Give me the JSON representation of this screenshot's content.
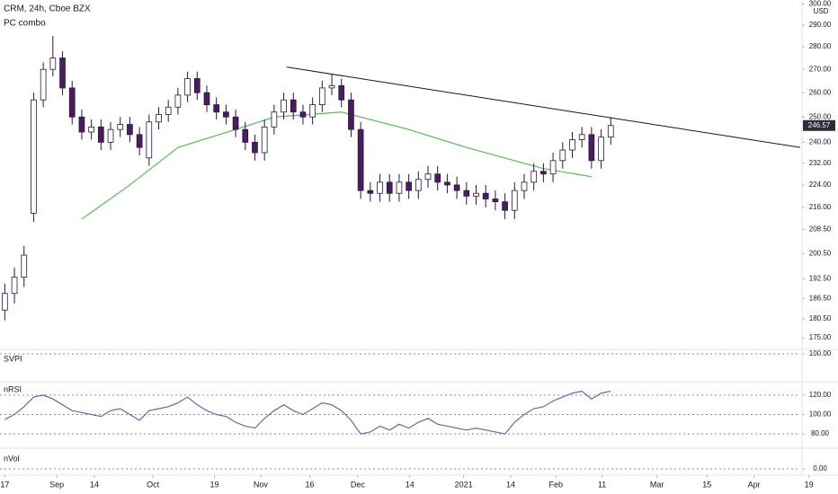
{
  "chart_data": [
    {
      "type": "candlestick",
      "title": "CRM, 24h, Cboe BZX",
      "subtitle": "PC combo",
      "y_unit": "USD",
      "log_scale": true,
      "up_color": "#ffffff",
      "down_color": "#4a1d5e",
      "edge_color": "#2a1540",
      "open": [
        183,
        188,
        193,
        214,
        257,
        270,
        275,
        262,
        250,
        244,
        246,
        240,
        245,
        247,
        243,
        234,
        248,
        251,
        254,
        259,
        266,
        260,
        255,
        252,
        250,
        245,
        240,
        236,
        246,
        252,
        257,
        252,
        250,
        255,
        262,
        263,
        257,
        245,
        222,
        221,
        225,
        221,
        225,
        222,
        226,
        228,
        225,
        224,
        222,
        220,
        221,
        219,
        218,
        215,
        222,
        225,
        229,
        228,
        233,
        237,
        241,
        243,
        233,
        242
      ],
      "high": [
        191,
        196,
        203,
        260,
        273,
        285,
        278,
        265,
        253,
        249,
        249,
        248,
        250,
        250,
        246,
        251,
        254,
        257,
        262,
        269,
        269,
        263,
        258,
        255,
        253,
        248,
        243,
        249,
        255,
        260,
        260,
        255,
        258,
        265,
        268,
        266,
        260,
        248,
        225,
        228,
        228,
        228,
        228,
        229,
        231,
        231,
        228,
        227,
        225,
        224,
        224,
        222,
        221,
        225,
        228,
        232,
        232,
        236,
        240,
        244,
        246,
        246,
        245,
        250
      ],
      "low": [
        180,
        185,
        190,
        211,
        254,
        267,
        259,
        247,
        241,
        241,
        237,
        237,
        242,
        240,
        235,
        231,
        245,
        248,
        251,
        256,
        257,
        252,
        249,
        247,
        242,
        237,
        233,
        233,
        243,
        249,
        249,
        247,
        247,
        252,
        259,
        254,
        242,
        219,
        218,
        218,
        218,
        218,
        219,
        219,
        223,
        222,
        221,
        219,
        217,
        217,
        216,
        215,
        212,
        212,
        219,
        222,
        225,
        225,
        230,
        234,
        238,
        230,
        230,
        239
      ],
      "close": [
        188,
        193,
        200,
        257,
        270,
        275,
        262,
        250,
        244,
        246,
        240,
        245,
        247,
        243,
        238,
        248,
        251,
        254,
        259,
        266,
        260,
        255,
        252,
        250,
        245,
        240,
        236,
        246,
        252,
        257,
        252,
        250,
        255,
        262,
        263,
        257,
        245,
        222,
        221,
        225,
        221,
        225,
        222,
        226,
        228,
        225,
        224,
        222,
        220,
        221,
        219,
        218,
        215,
        222,
        225,
        229,
        228,
        233,
        237,
        241,
        243,
        233,
        242,
        246.57
      ],
      "overlay": {
        "color": "#5cb85c",
        "x": [
          8,
          13,
          18,
          24,
          28,
          35,
          42,
          48,
          56,
          61
        ],
        "values": [
          212,
          224,
          238,
          245,
          250,
          252,
          245,
          238,
          230,
          227
        ]
      },
      "trendline": {
        "color": "#131722",
        "x": [
          29.3,
          82.7
        ],
        "y": [
          271,
          238
        ]
      },
      "xlim": [
        -0.5,
        82.7
      ],
      "xticks": [
        {
          "value": 0,
          "label": "17"
        },
        {
          "value": 5.4,
          "label": "Sep"
        },
        {
          "value": 9.3,
          "label": "14"
        },
        {
          "value": 15.4,
          "label": "Oct"
        },
        {
          "value": 21.8,
          "label": "19"
        },
        {
          "value": 26.6,
          "label": "Nov"
        },
        {
          "value": 31.7,
          "label": "16"
        },
        {
          "value": 36.7,
          "label": "Dec"
        },
        {
          "value": 42.1,
          "label": "14"
        },
        {
          "value": 47.7,
          "label": "2021"
        },
        {
          "value": 52.6,
          "label": "14"
        },
        {
          "value": 57.3,
          "label": "Feb"
        },
        {
          "value": 62.1,
          "label": "11"
        },
        {
          "value": 67.8,
          "label": "Mar"
        },
        {
          "value": 73,
          "label": "15"
        },
        {
          "value": 77.9,
          "label": "Apr"
        },
        {
          "value": 83.6,
          "label": "19"
        }
      ],
      "ylim": [
        172,
        302
      ],
      "yticks": [
        {
          "value": 300,
          "label": "300.00"
        },
        {
          "value": 290,
          "label": "290.00"
        },
        {
          "value": 280,
          "label": "280.00"
        },
        {
          "value": 270,
          "label": "270.00"
        },
        {
          "value": 260,
          "label": "260.00"
        },
        {
          "value": 250,
          "label": "250.00"
        },
        {
          "value": 240,
          "label": "240.00"
        },
        {
          "value": 232,
          "label": "232.00"
        },
        {
          "value": 224,
          "label": "224.00"
        },
        {
          "value": 216,
          "label": "216.00"
        },
        {
          "value": 208.5,
          "label": "208.50"
        },
        {
          "value": 200.5,
          "label": "200.50"
        },
        {
          "value": 192.5,
          "label": "192.50"
        },
        {
          "value": 186.5,
          "label": "186.50"
        },
        {
          "value": 180.5,
          "label": "180.50"
        },
        {
          "value": 175,
          "label": "175.00"
        }
      ]
    },
    {
      "type": "panel",
      "title": "SVPI",
      "ylim": [
        0,
        100
      ],
      "yticks": [
        {
          "value": 100,
          "label": "100.00"
        }
      ]
    },
    {
      "type": "line",
      "title": "nRSI",
      "color": "#7b5ea7",
      "values": [
        95,
        100,
        108,
        118,
        120,
        116,
        110,
        104,
        102,
        100,
        98,
        104,
        106,
        100,
        94,
        104,
        106,
        108,
        112,
        118,
        110,
        104,
        100,
        98,
        92,
        88,
        86,
        96,
        104,
        110,
        104,
        100,
        106,
        112,
        110,
        104,
        94,
        80,
        82,
        88,
        84,
        90,
        86,
        92,
        96,
        90,
        88,
        86,
        84,
        86,
        84,
        82,
        80,
        92,
        100,
        106,
        108,
        114,
        118,
        122,
        124,
        116,
        122,
        124
      ],
      "ylim": [
        69,
        131
      ],
      "yticks": [
        {
          "value": 120,
          "label": "120.00"
        },
        {
          "value": 100,
          "label": "100.00"
        },
        {
          "value": 80,
          "label": "80.00"
        }
      ]
    },
    {
      "type": "panel",
      "title": "nVol",
      "ylim": [
        0,
        1
      ],
      "yticks": [
        {
          "value": 0,
          "label": "0.00"
        }
      ]
    }
  ]
}
